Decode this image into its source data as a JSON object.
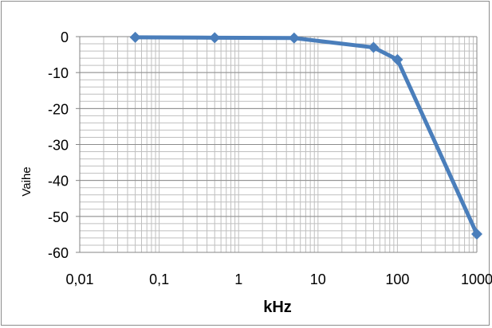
{
  "chart_data": {
    "type": "line",
    "title": "",
    "xlabel": "kHz",
    "ylabel": "Vaihe",
    "x_scale": "log",
    "xlim": [
      0.01,
      1000
    ],
    "ylim": [
      -60,
      0
    ],
    "grid": true,
    "x_ticks": [
      0.01,
      0.1,
      1,
      10,
      100,
      1000
    ],
    "x_tick_labels": [
      "0,01",
      "0,1",
      "1",
      "10",
      "100",
      "1000"
    ],
    "y_ticks": [
      0,
      -10,
      -20,
      -30,
      -40,
      -50,
      -60
    ],
    "y_tick_labels": [
      "0",
      "-10",
      "-20",
      "-30",
      "-40",
      "-50",
      "-60"
    ],
    "series": [
      {
        "x": [
          0.05,
          0.5,
          5,
          50,
          100,
          1000
        ],
        "y": [
          -0.2,
          -0.3,
          -0.4,
          -3,
          -6.4,
          -54.9
        ]
      }
    ],
    "colors": {
      "line": "#4a7ebb",
      "grid": "#bfbfbf",
      "axis": "#868686"
    }
  }
}
